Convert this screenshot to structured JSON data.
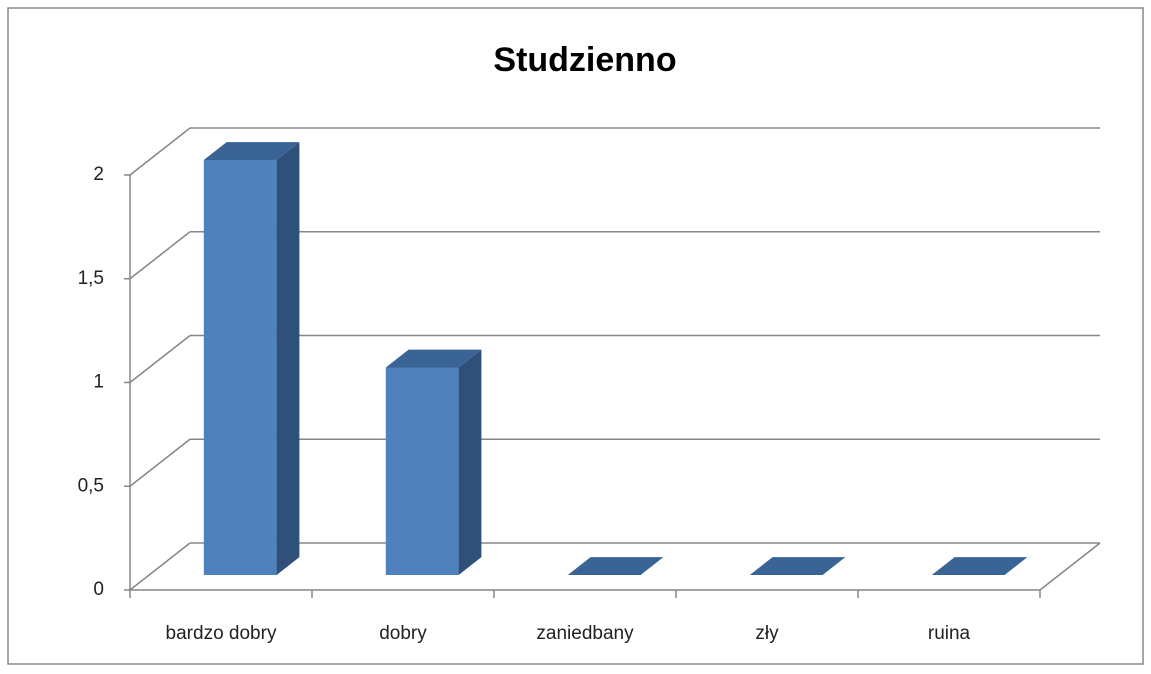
{
  "chart_data": {
    "type": "bar3d",
    "title": "Studzienno",
    "categories": [
      "bardzo dobry",
      "dobry",
      "zaniedbany",
      "zły",
      "ruina"
    ],
    "values": [
      2,
      1,
      0,
      0,
      0
    ],
    "color": "#4f81bd",
    "ylim": [
      0,
      2
    ],
    "yticks": [
      0,
      {
        "value": 0.5,
        "label": "0,5"
      },
      1,
      {
        "value": 1.5,
        "label": "1,5"
      },
      2
    ],
    "grid": true
  }
}
